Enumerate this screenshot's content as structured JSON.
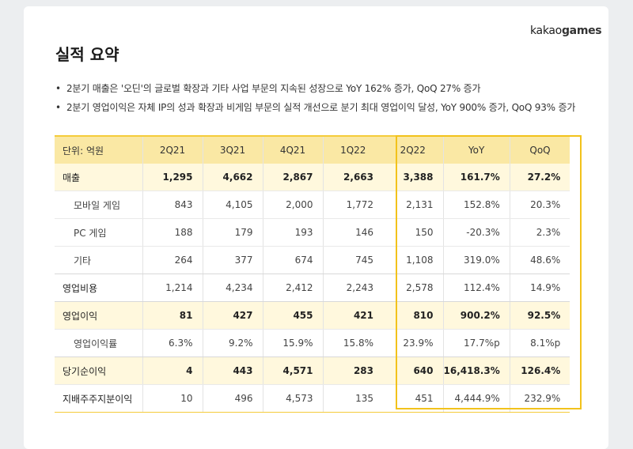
{
  "logo": {
    "text_kakao": "kakao",
    "text_games": "games"
  },
  "title": "실적 요약",
  "bullets": [
    "2분기 매출은 '오딘'의 글로벌 확장과 기타 사업 부문의 지속된 성장으로 YoY 162% 증가, QoQ 27% 증가",
    "2분기 영업이익은 자체 IP의 성과 확장과 비게임 부문의 실적 개선으로 분기 최대 영업이익 달성, YoY 900% 증가, QoQ 93% 증가"
  ],
  "table": {
    "unit_label": "단위: 억원",
    "columns": [
      "2Q21",
      "3Q21",
      "4Q21",
      "1Q22",
      "2Q22",
      "YoY",
      "QoQ"
    ],
    "rows": [
      {
        "label": "매출",
        "values": [
          "1,295",
          "4,662",
          "2,867",
          "2,663",
          "3,388",
          "161.7%",
          "27.2%"
        ]
      },
      {
        "label": "모바일 게임",
        "values": [
          "843",
          "4,105",
          "2,000",
          "1,772",
          "2,131",
          "152.8%",
          "20.3%"
        ]
      },
      {
        "label": "PC 게임",
        "values": [
          "188",
          "179",
          "193",
          "146",
          "150",
          "-20.3%",
          "2.3%"
        ]
      },
      {
        "label": "기타",
        "values": [
          "264",
          "377",
          "674",
          "745",
          "1,108",
          "319.0%",
          "48.6%"
        ]
      },
      {
        "label": "영업비용",
        "values": [
          "1,214",
          "4,234",
          "2,412",
          "2,243",
          "2,578",
          "112.4%",
          "14.9%"
        ]
      },
      {
        "label": "영업이익",
        "values": [
          "81",
          "427",
          "455",
          "421",
          "810",
          "900.2%",
          "92.5%"
        ]
      },
      {
        "label": "영업이익률",
        "values": [
          "6.3%",
          "9.2%",
          "15.9%",
          "15.8%",
          "23.9%",
          "17.7%p",
          "8.1%p"
        ]
      },
      {
        "label": "당기순이익",
        "values": [
          "4",
          "443",
          "4,571",
          "283",
          "640",
          "16,418.3%",
          "126.4%"
        ]
      },
      {
        "label": "지배주주지분이익",
        "values": [
          "10",
          "496",
          "4,573",
          "135",
          "451",
          "4,444.9%",
          "232.9%"
        ]
      }
    ]
  },
  "colors": {
    "accent": "#f2c21b",
    "header_bg": "#fae8a4",
    "major_row_bg": "#fff8dd"
  }
}
